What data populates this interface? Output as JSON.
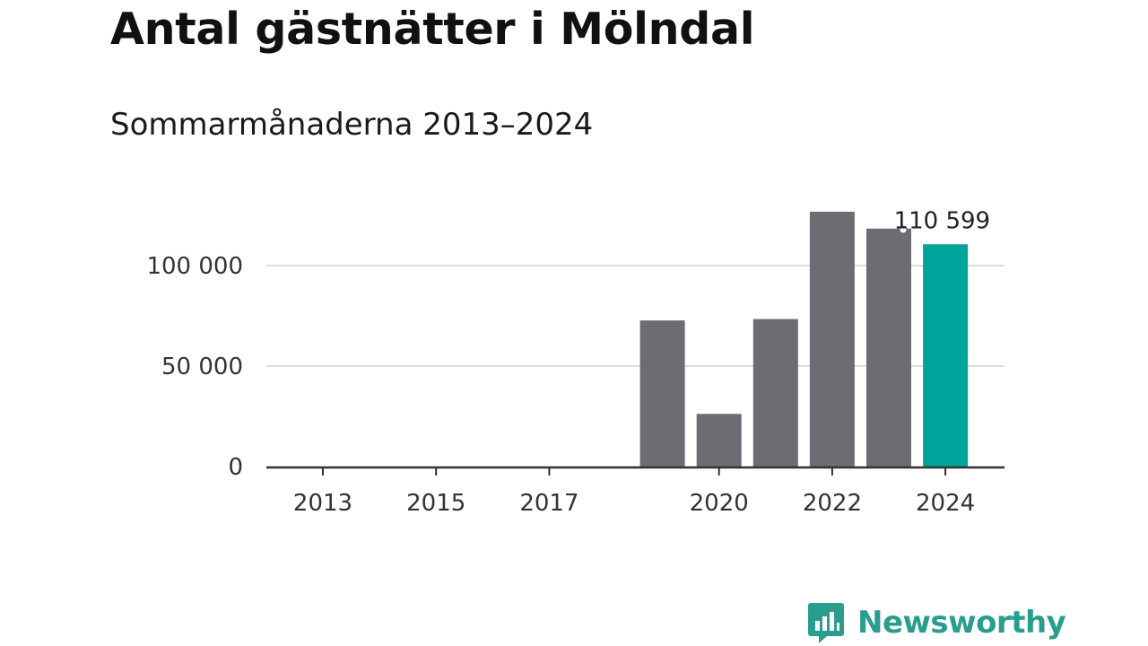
{
  "title": "Antal gästnätter i Mölndal",
  "subtitle": "Sommarmånaderna 2013–2024",
  "brand": {
    "name": "Newsworthy",
    "color": "#2a9d8f"
  },
  "chart_data": {
    "type": "bar",
    "title": "Antal gästnätter i Mölndal",
    "subtitle": "Sommarmånaderna 2013–2024",
    "categories": [
      "2013",
      "2014",
      "2015",
      "2016",
      "2017",
      "2018",
      "2019",
      "2020",
      "2021",
      "2022",
      "2023",
      "2024"
    ],
    "values": [
      null,
      null,
      null,
      null,
      null,
      null,
      72700,
      26200,
      73400,
      126800,
      118400,
      110599
    ],
    "highlight_index": 11,
    "highlight_label": "110 599",
    "bar_color": "#6d6c72",
    "highlight_color": "#00a398",
    "ylim": [
      0,
      130000
    ],
    "yticks": [
      0,
      50000,
      100000
    ],
    "ytick_labels": [
      "0",
      "50 000",
      "100 000"
    ],
    "xticks": [
      "2013",
      "2015",
      "2017",
      "2020",
      "2022",
      "2024"
    ],
    "grid": true,
    "xlabel": "",
    "ylabel": ""
  }
}
